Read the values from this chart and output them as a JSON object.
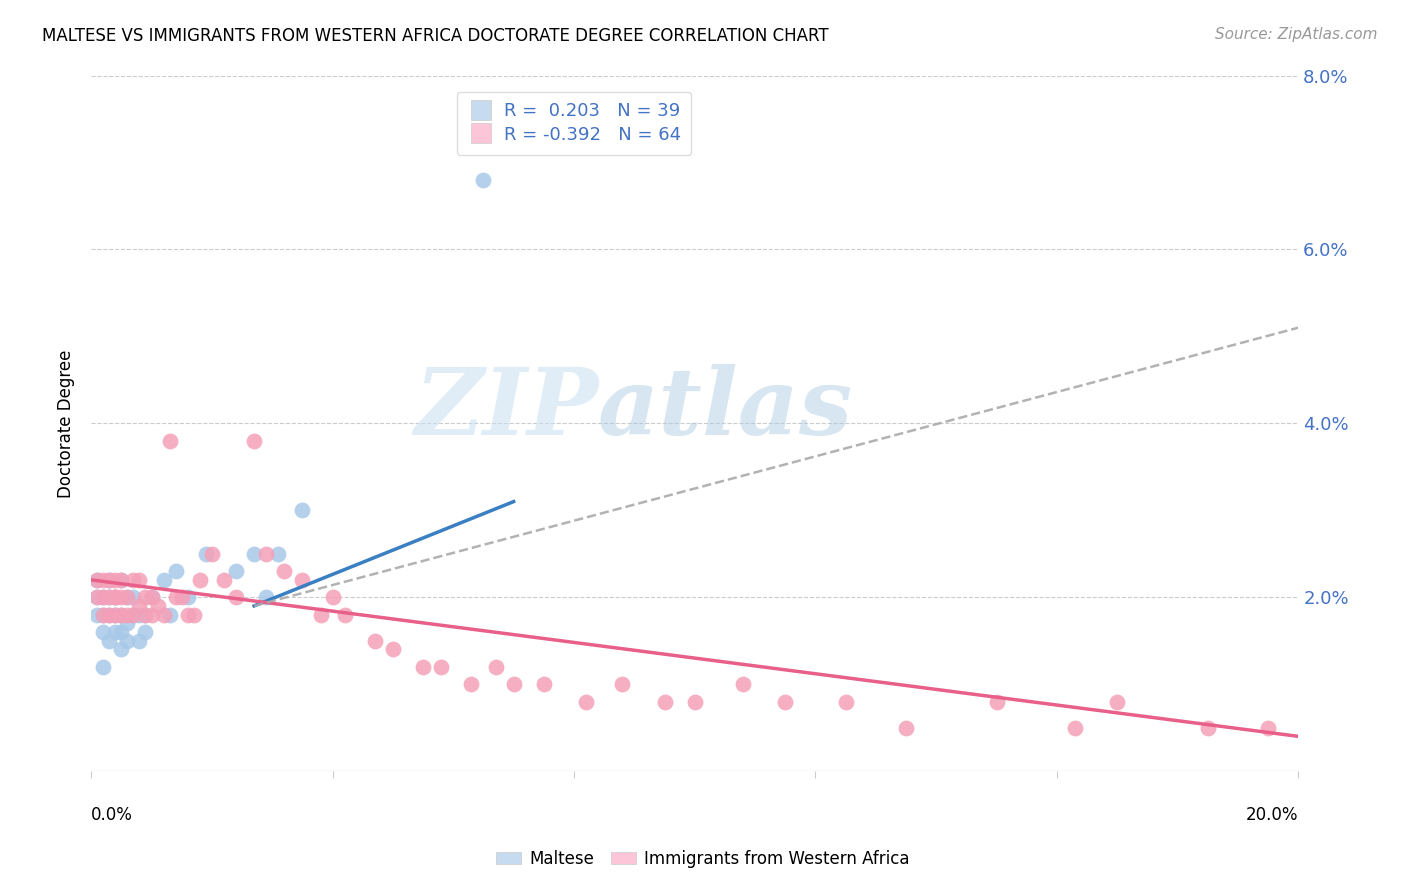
{
  "title": "MALTESE VS IMMIGRANTS FROM WESTERN AFRICA DOCTORATE DEGREE CORRELATION CHART",
  "source": "Source: ZipAtlas.com",
  "ylabel": "Doctorate Degree",
  "xlim": [
    0.0,
    0.2
  ],
  "ylim": [
    0.0,
    0.08
  ],
  "yticks": [
    0.0,
    0.02,
    0.04,
    0.06,
    0.08
  ],
  "ytick_labels": [
    "",
    "2.0%",
    "4.0%",
    "6.0%",
    "8.0%"
  ],
  "blue_color": "#a8c8e8",
  "pink_color": "#f4a0b8",
  "blue_fill": "#c6dbef",
  "pink_fill": "#fcc5d8",
  "trend_blue": "#3a7fc1",
  "trend_pink": "#e8608a",
  "trend_gray": "#aaaaaa",
  "watermark_zip": "ZIP",
  "watermark_atlas": "atlas",
  "blue_trend_x": [
    0.027,
    0.07
  ],
  "blue_trend_y": [
    0.019,
    0.031
  ],
  "pink_trend_x": [
    0.0,
    0.2
  ],
  "pink_trend_y": [
    0.022,
    0.004
  ],
  "gray_trend_x": [
    0.027,
    0.2
  ],
  "gray_trend_y": [
    0.019,
    0.051
  ],
  "maltese_x": [
    0.001,
    0.001,
    0.001,
    0.002,
    0.002,
    0.002,
    0.002,
    0.003,
    0.003,
    0.003,
    0.003,
    0.004,
    0.004,
    0.004,
    0.005,
    0.005,
    0.005,
    0.005,
    0.006,
    0.006,
    0.006,
    0.007,
    0.007,
    0.008,
    0.008,
    0.009,
    0.009,
    0.01,
    0.012,
    0.013,
    0.014,
    0.016,
    0.019,
    0.024,
    0.027,
    0.029,
    0.031,
    0.035,
    0.065
  ],
  "maltese_y": [
    0.018,
    0.02,
    0.022,
    0.012,
    0.016,
    0.018,
    0.02,
    0.015,
    0.018,
    0.02,
    0.022,
    0.016,
    0.018,
    0.02,
    0.014,
    0.016,
    0.018,
    0.022,
    0.015,
    0.017,
    0.02,
    0.018,
    0.02,
    0.015,
    0.018,
    0.016,
    0.018,
    0.02,
    0.022,
    0.018,
    0.023,
    0.02,
    0.025,
    0.023,
    0.025,
    0.02,
    0.025,
    0.03,
    0.068
  ],
  "western_africa_x": [
    0.001,
    0.001,
    0.002,
    0.002,
    0.002,
    0.003,
    0.003,
    0.003,
    0.004,
    0.004,
    0.004,
    0.004,
    0.005,
    0.005,
    0.005,
    0.006,
    0.006,
    0.007,
    0.007,
    0.008,
    0.008,
    0.009,
    0.009,
    0.01,
    0.01,
    0.011,
    0.012,
    0.013,
    0.014,
    0.015,
    0.016,
    0.017,
    0.018,
    0.02,
    0.022,
    0.024,
    0.027,
    0.029,
    0.032,
    0.035,
    0.038,
    0.04,
    0.042,
    0.047,
    0.05,
    0.055,
    0.058,
    0.063,
    0.067,
    0.07,
    0.075,
    0.082,
    0.088,
    0.095,
    0.1,
    0.108,
    0.115,
    0.125,
    0.135,
    0.15,
    0.163,
    0.17,
    0.185,
    0.195
  ],
  "western_africa_y": [
    0.02,
    0.022,
    0.018,
    0.02,
    0.022,
    0.018,
    0.02,
    0.022,
    0.018,
    0.02,
    0.022,
    0.02,
    0.018,
    0.02,
    0.022,
    0.018,
    0.02,
    0.018,
    0.022,
    0.019,
    0.022,
    0.018,
    0.02,
    0.018,
    0.02,
    0.019,
    0.018,
    0.038,
    0.02,
    0.02,
    0.018,
    0.018,
    0.022,
    0.025,
    0.022,
    0.02,
    0.038,
    0.025,
    0.023,
    0.022,
    0.018,
    0.02,
    0.018,
    0.015,
    0.014,
    0.012,
    0.012,
    0.01,
    0.012,
    0.01,
    0.01,
    0.008,
    0.01,
    0.008,
    0.008,
    0.01,
    0.008,
    0.008,
    0.005,
    0.008,
    0.005,
    0.008,
    0.005,
    0.005
  ]
}
